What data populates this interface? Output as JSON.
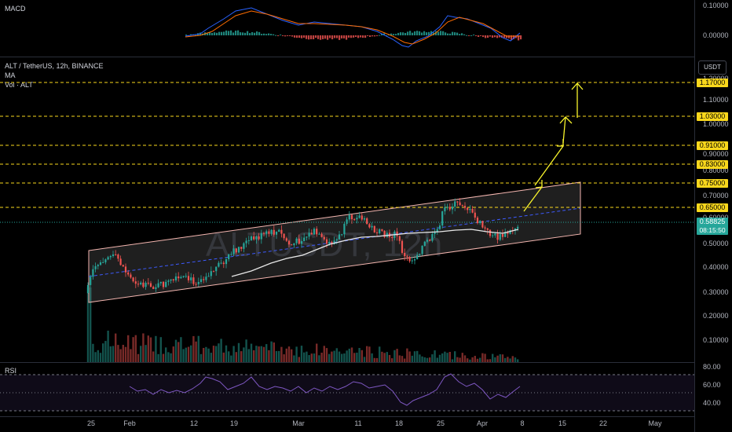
{
  "macd": {
    "label": "MACD",
    "ticks": [
      "0.10000",
      "0.00000"
    ]
  },
  "main": {
    "symbol": "ALT / TetherUS, 12h, BINANCE",
    "ma_label": "MA",
    "vol_label": "Vol · ALT",
    "watermark": "ALTUSDT, 12h",
    "currency": "USDT",
    "ticks": [
      "1.20000",
      "1.10000",
      "1.00000",
      "0.90000",
      "0.80000",
      "0.70000",
      "0.60000",
      "0.50000",
      "0.40000",
      "0.30000",
      "0.20000",
      "0.10000"
    ],
    "levels": [
      "1.17000",
      "1.03000",
      "0.91000",
      "0.83000",
      "0.75000",
      "0.65000"
    ],
    "last_price": "0.58825",
    "countdown": "08:15:50",
    "colors": {
      "level": "#f9d71c",
      "up": "#26a69a",
      "down": "#ef5350"
    }
  },
  "rsi": {
    "label": "RSI",
    "ticks": [
      "80.00",
      "60.00",
      "40.00"
    ]
  },
  "xaxis": {
    "labels": [
      "25",
      "Feb",
      "12",
      "19",
      "Mar",
      "11",
      "18",
      "25",
      "Apr",
      "8",
      "15",
      "22",
      "May"
    ]
  }
}
